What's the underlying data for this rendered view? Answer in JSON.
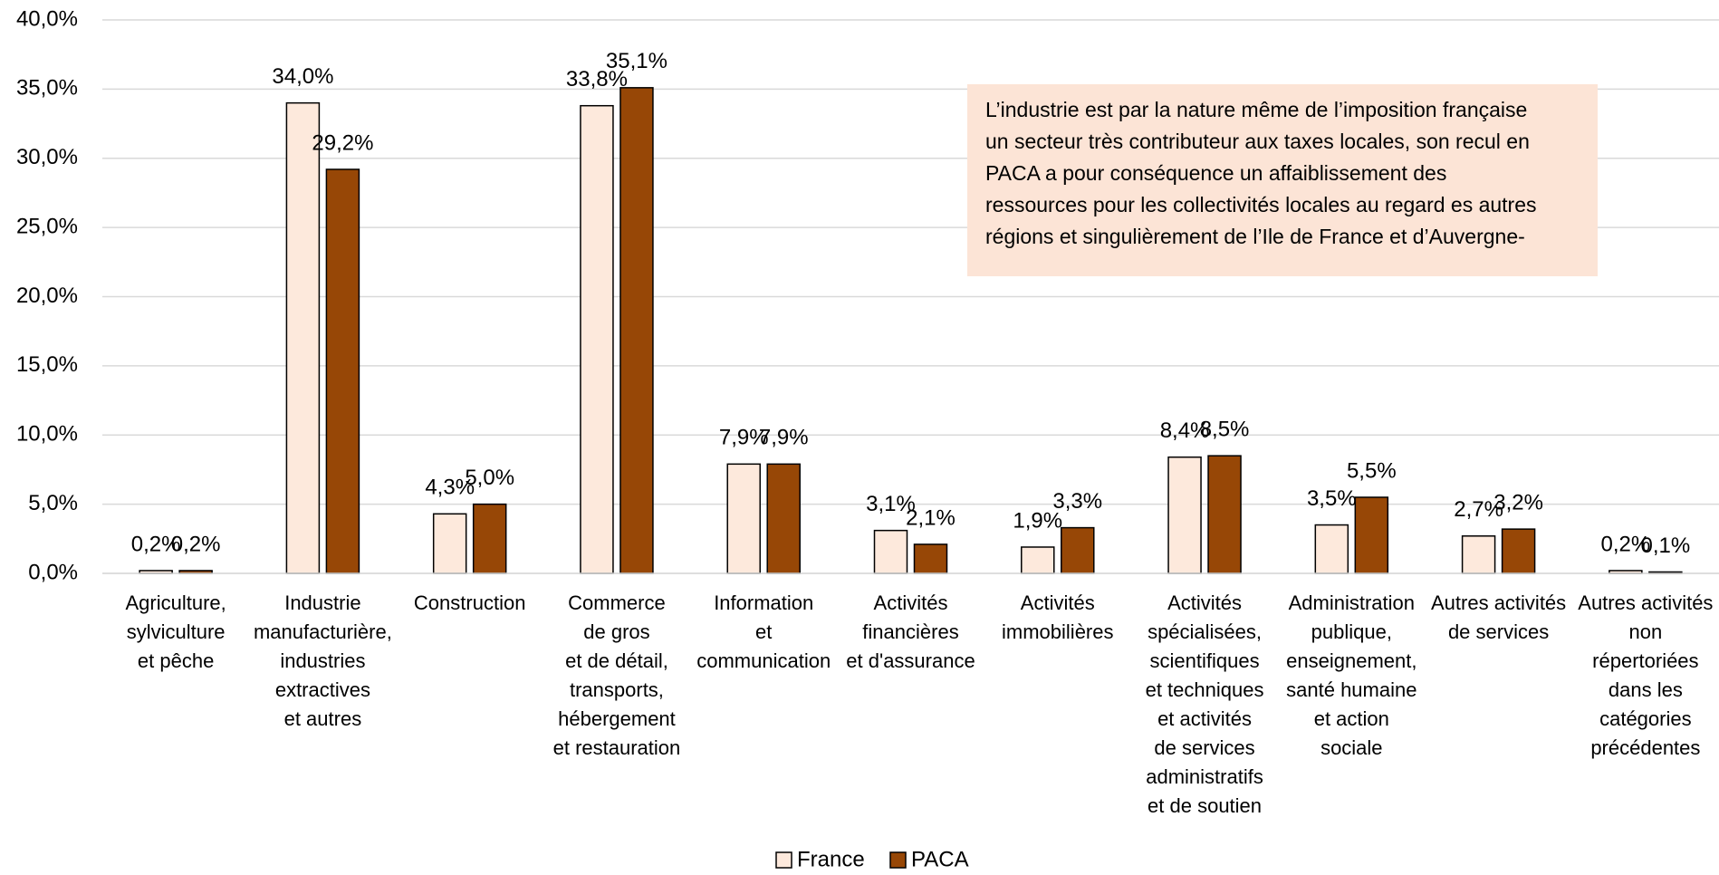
{
  "chart_data": {
    "type": "bar",
    "categories": [
      [
        "Agriculture,",
        "sylviculture",
        "et pêche"
      ],
      [
        "Industrie",
        "manufacturière,",
        "industries",
        "extractives",
        "et autres"
      ],
      [
        "Construction"
      ],
      [
        "Commerce",
        "de gros",
        "et de détail,",
        "transports,",
        "hébergement",
        "et restauration"
      ],
      [
        "Information",
        "et",
        "communication"
      ],
      [
        "Activités",
        "financières",
        "et d'assurance"
      ],
      [
        "Activités",
        "immobilières"
      ],
      [
        "Activités",
        "spécialisées,",
        "scientifiques",
        "et techniques",
        "et activités",
        "de services",
        "administratifs",
        "et de soutien"
      ],
      [
        "Administration",
        "publique,",
        "enseignement,",
        "santé humaine",
        "et action",
        "sociale"
      ],
      [
        "Autres activités",
        "de services"
      ],
      [
        "Autres activités",
        "non",
        "répertoriées",
        "dans les",
        "catégories",
        "précédentes"
      ]
    ],
    "series": [
      {
        "name": "France",
        "color": "#fde9dc",
        "values": [
          0.2,
          34.0,
          4.3,
          33.8,
          7.9,
          3.1,
          1.9,
          8.4,
          3.5,
          2.7,
          0.2
        ],
        "value_labels": [
          "0,2%",
          "34,0%",
          "4,3%",
          "33,8%",
          "7,9%",
          "3,1%",
          "1,9%",
          "8,4%",
          "3,5%",
          "2,7%",
          "0,2%"
        ]
      },
      {
        "name": "PACA",
        "color": "#974706",
        "values": [
          0.2,
          29.2,
          5.0,
          35.1,
          7.9,
          2.1,
          3.3,
          8.5,
          5.5,
          3.2,
          0.1
        ],
        "value_labels": [
          "0,2%",
          "29,2%",
          "5,0%",
          "35,1%",
          "7,9%",
          "2,1%",
          "3,3%",
          "8,5%",
          "5,5%",
          "3,2%",
          "0,1%"
        ]
      }
    ],
    "ylim": [
      0,
      40
    ],
    "yticks": [
      {
        "value": 0,
        "label": "0,0%"
      },
      {
        "value": 5,
        "label": "5,0%"
      },
      {
        "value": 10,
        "label": "10,0%"
      },
      {
        "value": 15,
        "label": "15,0%"
      },
      {
        "value": 20,
        "label": "20,0%"
      },
      {
        "value": 25,
        "label": "25,0%"
      },
      {
        "value": 30,
        "label": "30,0%"
      },
      {
        "value": 35,
        "label": "35,0%"
      },
      {
        "value": 40,
        "label": "40,0%"
      }
    ],
    "grid": true,
    "legend": "bottom",
    "annotation": [
      "L’industrie est par la nature même de l’imposition française",
      "un secteur très contributeur aux taxes locales, son recul en",
      "PACA a pour conséquence un affaiblissement des",
      "ressources pour les collectivités locales au regard es autres",
      "régions et singulièrement de l’Ile de France et d’Auvergne-"
    ]
  }
}
